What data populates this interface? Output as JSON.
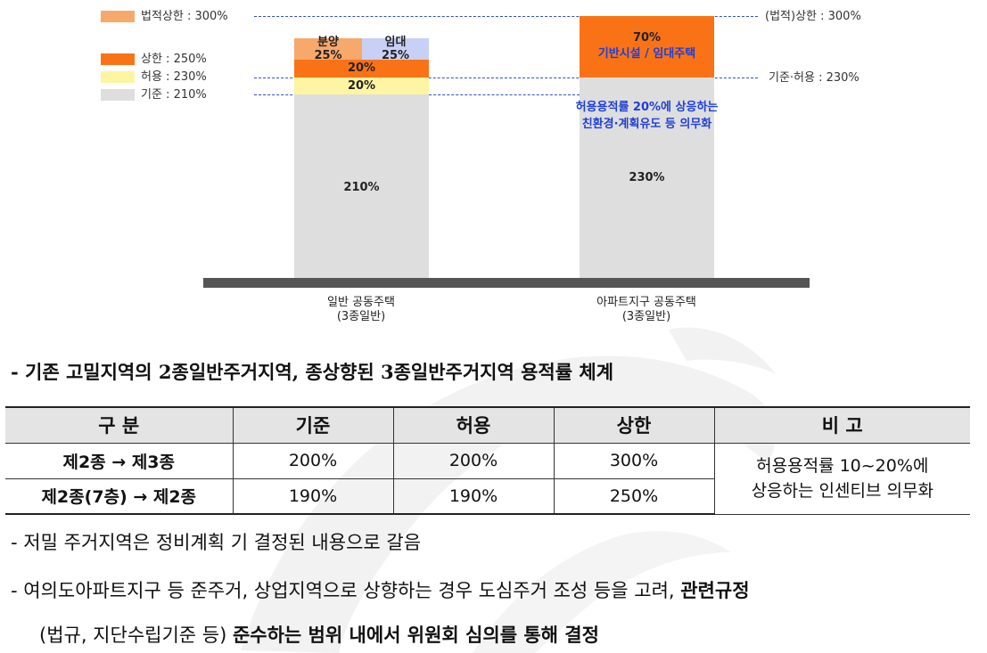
{
  "legend": [
    {
      "label": "법적상한 : 300%",
      "color": "#f7a86b"
    },
    {
      "label": "상한 : 250%",
      "color": "#f97316"
    },
    {
      "label": "허용 : 230%",
      "color": "#fdf5a1"
    },
    {
      "label": "기준 : 210%",
      "color": "#dedede"
    }
  ],
  "reference_lines": {
    "legal_cap_label": "(법적)상한 : 300%",
    "base_allow_label": "기준·허용 : 230%"
  },
  "colors": {
    "base": "#dedede",
    "allow": "#fdf5a1",
    "cap": "#f97316",
    "sale": "#f7a86b",
    "rent": "#c8d0f5",
    "dash": "#2e4fd1",
    "annotation": "#1f3fd8",
    "ground": "#555555"
  },
  "chart_data": {
    "type": "bar",
    "stacked": true,
    "categories": [
      "일반 공동주택\n(3종일반)",
      "아파트지구 공동주택\n(3종일반)"
    ],
    "ylim": [
      0,
      300
    ],
    "bars": [
      {
        "category": "일반 공동주택\n(3종일반)",
        "segments": [
          {
            "label": "210%",
            "value": 210,
            "color": "#dedede"
          },
          {
            "label": "20%",
            "value": 20,
            "color": "#fdf5a1"
          },
          {
            "label": "20%",
            "value": 20,
            "color": "#f97316"
          },
          {
            "label": "분양\n25%",
            "value": 25,
            "color": "#f7a86b"
          },
          {
            "label": "임대\n25%",
            "value": 25,
            "color": "#c8d0f5"
          }
        ]
      },
      {
        "category": "아파트지구 공동주택\n(3종일반)",
        "segments": [
          {
            "label": "230%",
            "value": 230,
            "color": "#dedede"
          },
          {
            "label": "70%",
            "value": 70,
            "color": "#f97316",
            "sublabel": "기반시설 / 임대주택"
          }
        ],
        "annotation": "허용용적률 20%에 상응하는\n친환경·계획유도 등 의무화"
      }
    ]
  },
  "text": {
    "heading": "- 기존 고밀지역의 2종일반주거지역, 종상향된 3종일반주거지역 용적률 체계",
    "note1": "- 저밀 주거지역은 정비계획 기 결정된 내용으로 갈음",
    "note2_plain": "- 여의도아파트지구 등 준주거, 상업지역으로 상향하는 경우 도심주거 조성 등을 고려, ",
    "note2_bold": "관련규정",
    "note3_plain": "(법규, 지단수립기준 등) ",
    "note3_bold": "준수하는 범위 내에서 위원회 심의를 통해 결정"
  },
  "table": {
    "headers": [
      "구 분",
      "기준",
      "허용",
      "상한",
      "비 고"
    ],
    "rows": [
      {
        "label": "제2종 → 제3종",
        "base": "200%",
        "allow": "200%",
        "cap": "300%"
      },
      {
        "label": "제2종(7층) → 제2종",
        "base": "190%",
        "allow": "190%",
        "cap": "250%"
      }
    ],
    "remark_line1": "허용용적률 10~20%에",
    "remark_line2": "상응하는 인센티브 의무화"
  }
}
